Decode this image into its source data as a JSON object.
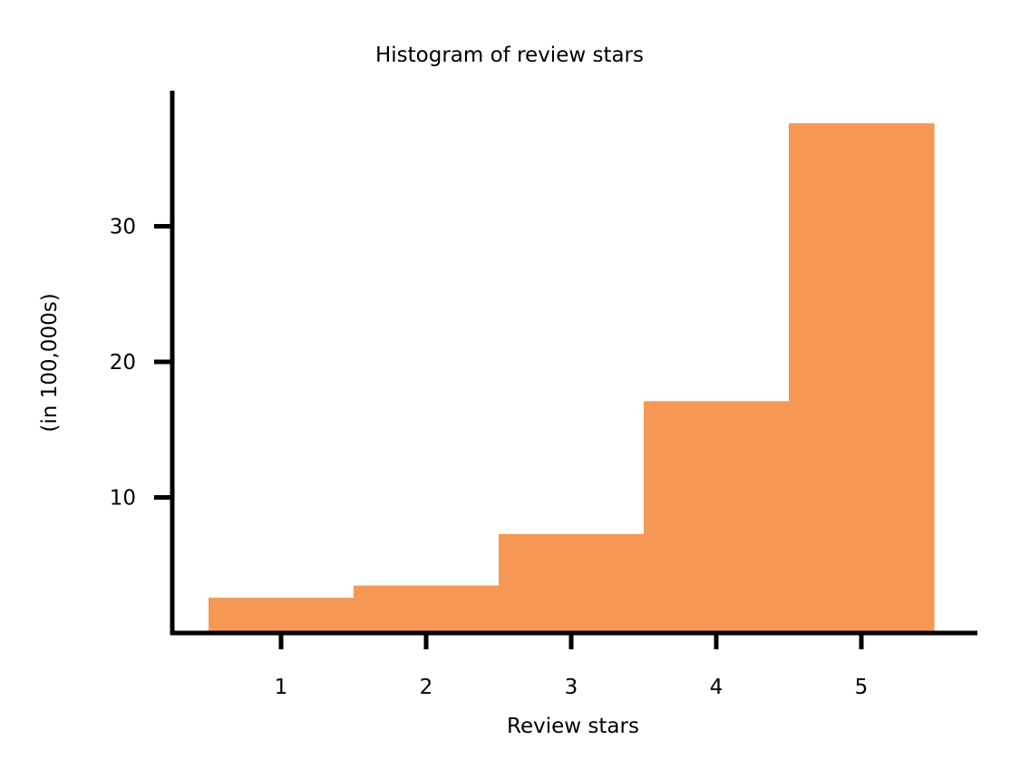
{
  "chart_data": {
    "type": "bar",
    "title": "Histogram of review stars",
    "xlabel": "Review stars",
    "ylabel": "(in 100,000s)",
    "categories": [
      "1",
      "2",
      "3",
      "4",
      "5"
    ],
    "x": [
      1,
      2,
      3,
      4,
      5
    ],
    "values": [
      2.6,
      3.5,
      7.3,
      17.1,
      37.6
    ],
    "xlim": [
      0.25,
      5.8
    ],
    "ylim": [
      0,
      40
    ],
    "xticks": [
      1,
      2,
      3,
      4,
      5
    ],
    "yticks": [
      10,
      20,
      30
    ],
    "bar_color": "#f79754",
    "grid": false,
    "legend": "none"
  }
}
